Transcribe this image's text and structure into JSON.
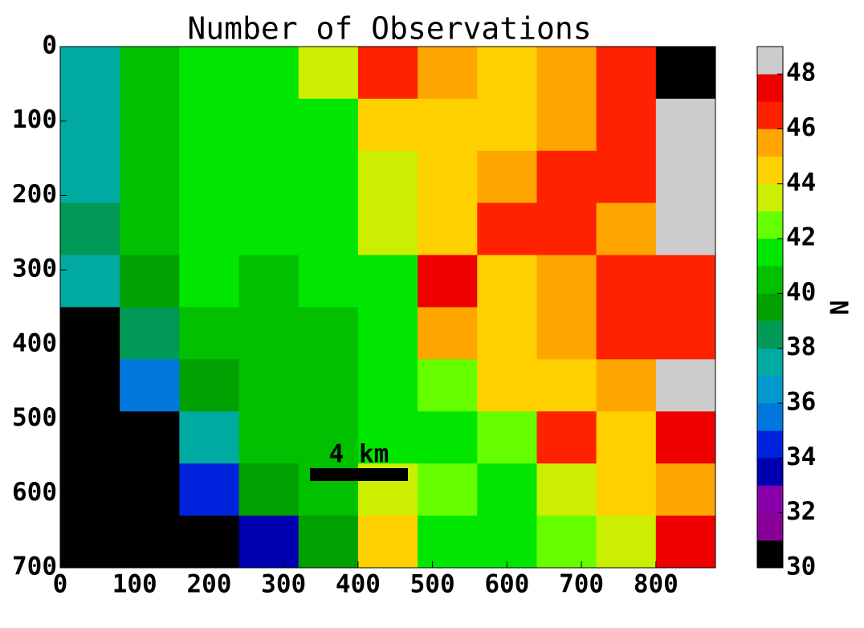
{
  "chart_data": {
    "type": "heatmap",
    "title": "Number of Observations",
    "xlim": [
      0,
      880
    ],
    "ylim": [
      700,
      0
    ],
    "xticks": [
      0,
      100,
      200,
      300,
      400,
      500,
      600,
      700,
      800
    ],
    "yticks": [
      0,
      100,
      200,
      300,
      400,
      500,
      600,
      700
    ],
    "x_edges": [
      0,
      80,
      160,
      240,
      320,
      400,
      480,
      560,
      640,
      720,
      800,
      880
    ],
    "y_edges": [
      0,
      70,
      140,
      210,
      280,
      350,
      420,
      490,
      560,
      630,
      700
    ],
    "z": [
      [
        37,
        40,
        41,
        41,
        43,
        46,
        45,
        44,
        45,
        46,
        30
      ],
      [
        37,
        40,
        41,
        41,
        41,
        44,
        44,
        44,
        45,
        46,
        48
      ],
      [
        37,
        40,
        41,
        41,
        41,
        43,
        44,
        45,
        46,
        46,
        48
      ],
      [
        38,
        40,
        41,
        41,
        41,
        43,
        44,
        46,
        46,
        45,
        48
      ],
      [
        37,
        39,
        41,
        40,
        41,
        41,
        47,
        44,
        45,
        46,
        46
      ],
      [
        30,
        38,
        40,
        40,
        40,
        41,
        45,
        44,
        45,
        46,
        46
      ],
      [
        30,
        35,
        39,
        40,
        40,
        41,
        42,
        44,
        44,
        45,
        48
      ],
      [
        30,
        30,
        37,
        40,
        40,
        41,
        41,
        42,
        46,
        44,
        47
      ],
      [
        30,
        30,
        34,
        39,
        40,
        43,
        42,
        41,
        43,
        44,
        45
      ],
      [
        30,
        30,
        30,
        33,
        39,
        44,
        41,
        41,
        42,
        43,
        47
      ]
    ],
    "annotation": "4 km",
    "colorbar": {
      "label": "N",
      "lim": [
        30,
        49
      ],
      "levels": [
        30,
        31,
        32,
        33,
        34,
        35,
        36,
        37,
        38,
        39,
        40,
        41,
        42,
        43,
        44,
        45,
        46,
        47,
        48,
        49
      ],
      "colors": [
        "#000000",
        "#880099",
        "#8800aa",
        "#0000b0",
        "#0022dd",
        "#0077dd",
        "#0099cc",
        "#00aaa0",
        "#009955",
        "#00a000",
        "#00c000",
        "#00e600",
        "#66ff00",
        "#ccee00",
        "#ffd000",
        "#ffa500",
        "#ff2200",
        "#ee0000",
        "#cccccc"
      ],
      "ticks": [
        30,
        32,
        34,
        36,
        38,
        40,
        42,
        44,
        46,
        48
      ]
    }
  }
}
